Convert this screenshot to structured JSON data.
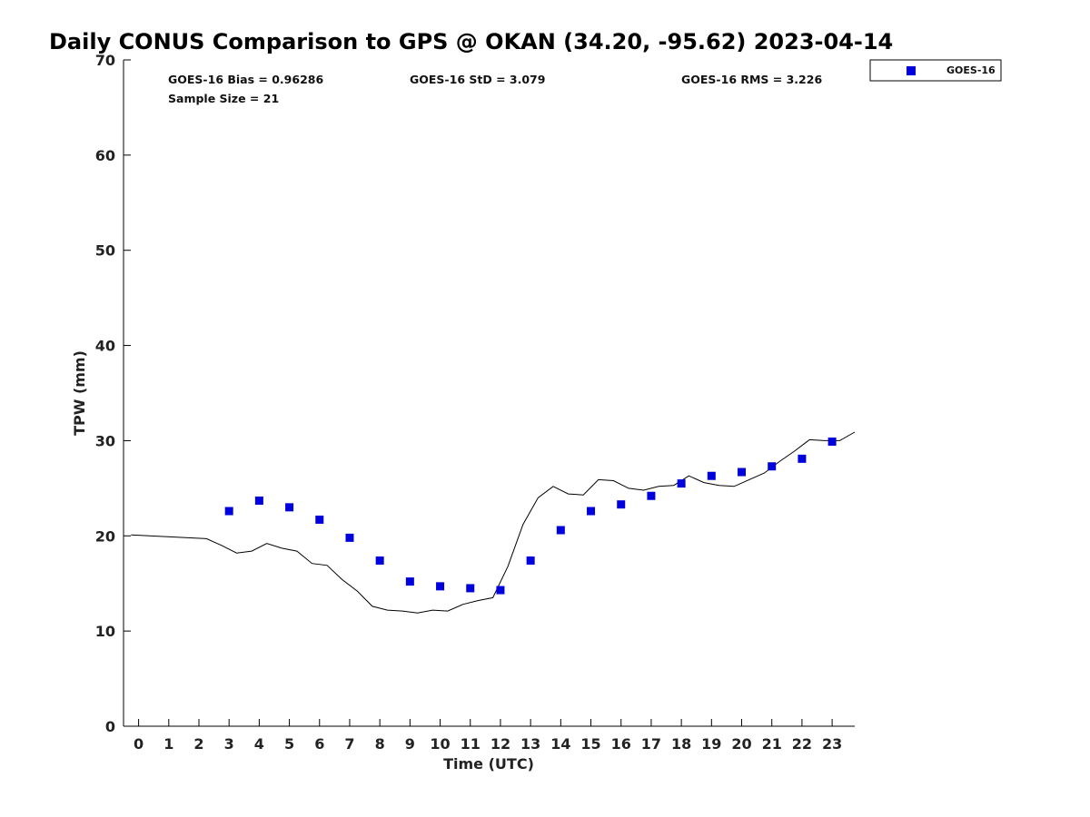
{
  "chart_data": {
    "type": "scatter",
    "title": "Daily CONUS Comparison to GPS @ OKAN (34.20, -95.62) 2023-04-14",
    "xlabel": "Time (UTC)",
    "ylabel": "TPW (mm)",
    "xlim": [
      -0.5,
      23.75
    ],
    "ylim": [
      0,
      70
    ],
    "x_ticks": [
      0,
      1,
      2,
      3,
      4,
      5,
      6,
      7,
      8,
      9,
      10,
      11,
      12,
      13,
      14,
      15,
      16,
      17,
      18,
      19,
      20,
      21,
      22,
      23
    ],
    "y_ticks": [
      0,
      10,
      20,
      30,
      40,
      50,
      60,
      70
    ],
    "legend_position": "top-right (outside plot)",
    "grid": false,
    "stats": {
      "bias": "GOES-16 Bias = 0.96286",
      "std": "GOES-16 StD = 3.079",
      "rms": "GOES-16 RMS = 3.226",
      "sample_size": "Sample Size = 21"
    },
    "series": [
      {
        "name": "GOES-16",
        "kind": "scatter",
        "color": "#0000dd",
        "x": [
          3,
          4,
          5,
          6,
          7,
          8,
          9,
          10,
          11,
          12,
          13,
          14,
          15,
          16,
          17,
          18,
          19,
          20,
          21,
          22,
          23
        ],
        "y": [
          22.6,
          23.7,
          23.0,
          21.7,
          19.8,
          17.4,
          15.2,
          14.7,
          14.5,
          14.3,
          17.4,
          20.6,
          22.6,
          23.3,
          24.2,
          25.5,
          26.3,
          26.7,
          27.3,
          28.1,
          29.9
        ]
      },
      {
        "kind": "line",
        "color": "#000000",
        "x": [
          -0.25,
          2.25,
          2.75,
          3.25,
          3.75,
          4.25,
          4.75,
          5.25,
          5.75,
          6.25,
          6.75,
          7.25,
          7.75,
          8.25,
          8.75,
          9.25,
          9.75,
          10.25,
          10.75,
          11.25,
          11.75,
          12.25,
          12.75,
          13.25,
          13.75,
          14.25,
          14.75,
          15.25,
          15.75,
          16.25,
          16.75,
          17.25,
          17.75,
          18.25,
          18.75,
          19.25,
          19.75,
          20.25,
          20.75,
          21.25,
          21.75,
          22.25,
          22.75,
          23.25,
          23.75
        ],
        "y": [
          20.1,
          19.7,
          19.0,
          18.2,
          18.4,
          19.2,
          18.7,
          18.4,
          17.1,
          16.9,
          15.4,
          14.2,
          12.6,
          12.2,
          12.1,
          11.9,
          12.2,
          12.1,
          12.8,
          13.2,
          13.5,
          16.8,
          21.2,
          24.0,
          25.2,
          24.4,
          24.3,
          25.9,
          25.8,
          25.0,
          24.8,
          25.2,
          25.3,
          26.3,
          25.6,
          25.3,
          25.2,
          25.9,
          26.6,
          27.8,
          28.9,
          30.1,
          30.0,
          30.0,
          30.9
        ]
      }
    ]
  }
}
